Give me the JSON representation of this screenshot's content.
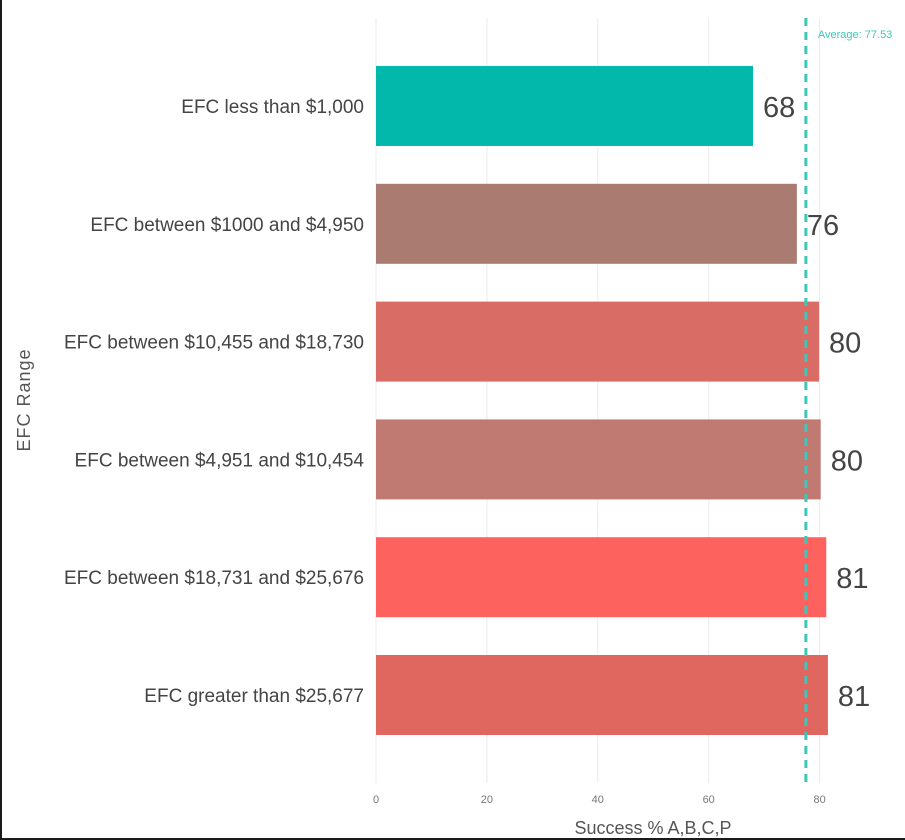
{
  "chart_data": {
    "type": "bar",
    "orientation": "horizontal",
    "categories": [
      "EFC less than $1,000",
      "EFC between $1000 and $4,950",
      "EFC between $10,455 and $18,730",
      "EFC between $4,951 and $10,454",
      "EFC between $18,731 and $25,676",
      "EFC greater than $25,677"
    ],
    "values": [
      68,
      76,
      80,
      80,
      81,
      81
    ],
    "plot_values": [
      68,
      75.9,
      79.9,
      80.2,
      81.2,
      81.5
    ],
    "data_labels": [
      "68",
      "76",
      "80",
      "80",
      "81",
      "81"
    ],
    "colors": [
      "#01B8AA",
      "#A97B71",
      "#D96C64",
      "#C17A71",
      "#FD625E",
      "#E0675F"
    ],
    "xlabel": "Success % A,B,C,P",
    "ylabel": "EFC Range",
    "xlim": [
      0,
      80
    ],
    "xticks": [
      0,
      20,
      40,
      60,
      80
    ],
    "grid": true,
    "reference_line": {
      "value": 77.53,
      "label": "Average: 77.53",
      "color": "#3CC8B8"
    }
  }
}
